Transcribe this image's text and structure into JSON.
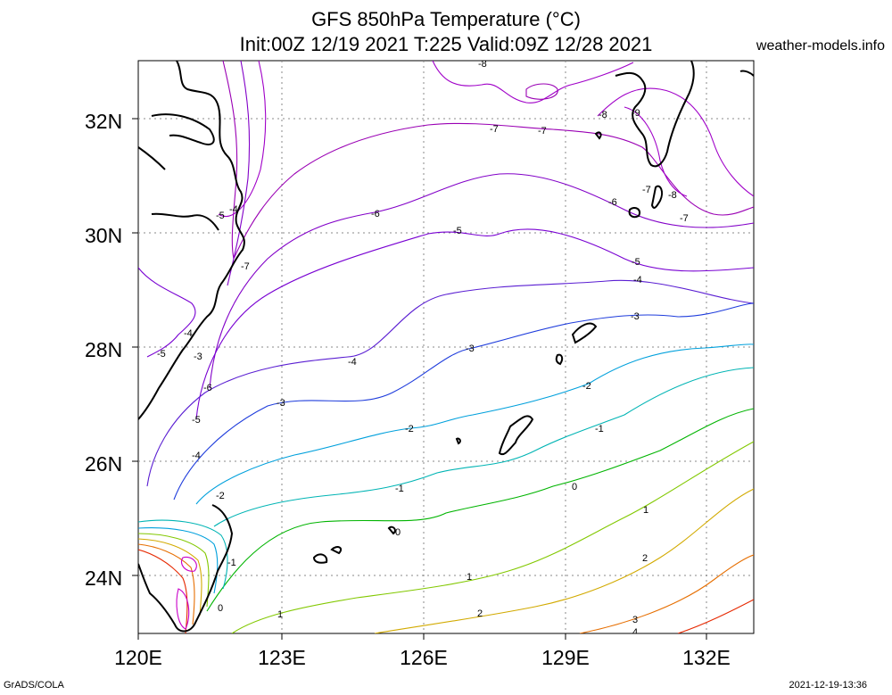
{
  "header": {
    "title_line1": "GFS 850hPa Temperature (°C)",
    "title_line2": "Init:00Z 12/19 2021 T:225 Valid:09Z 12/28 2021",
    "site": "weather-models.info"
  },
  "footer": {
    "left": "GrADS/COLA",
    "right": "2021-12-19-13:36"
  },
  "axes": {
    "lat_labels": [
      "24N",
      "26N",
      "28N",
      "30N",
      "32N"
    ],
    "lon_labels": [
      "120E",
      "123E",
      "126E",
      "129E",
      "132E"
    ]
  },
  "contours": {
    "minus8": "-8",
    "minus7": "-7",
    "minus6": "-6",
    "minus5": "-5",
    "minus4": "-4",
    "minus3": "-3",
    "minus2": "-2",
    "minus1": "-1",
    "zero": "0",
    "plus1": "1",
    "plus2": "2",
    "plus3": "3",
    "plus4": "4",
    "minus9": "-9"
  },
  "colors": {
    "minus8": "#a000c8",
    "minus7": "#9a00b4",
    "minus6": "#8200c8",
    "minus5": "#7800d2",
    "minus4": "#5a1ed2",
    "minus3": "#1e3cdc",
    "minus2": "#00a0dc",
    "minus1": "#00b4b4",
    "zero": "#00b400",
    "plus1": "#82c800",
    "plus2": "#d2aa00",
    "plus3": "#e66e00",
    "plus4": "#e62800",
    "coast": "#000000",
    "grid": "#888888"
  }
}
